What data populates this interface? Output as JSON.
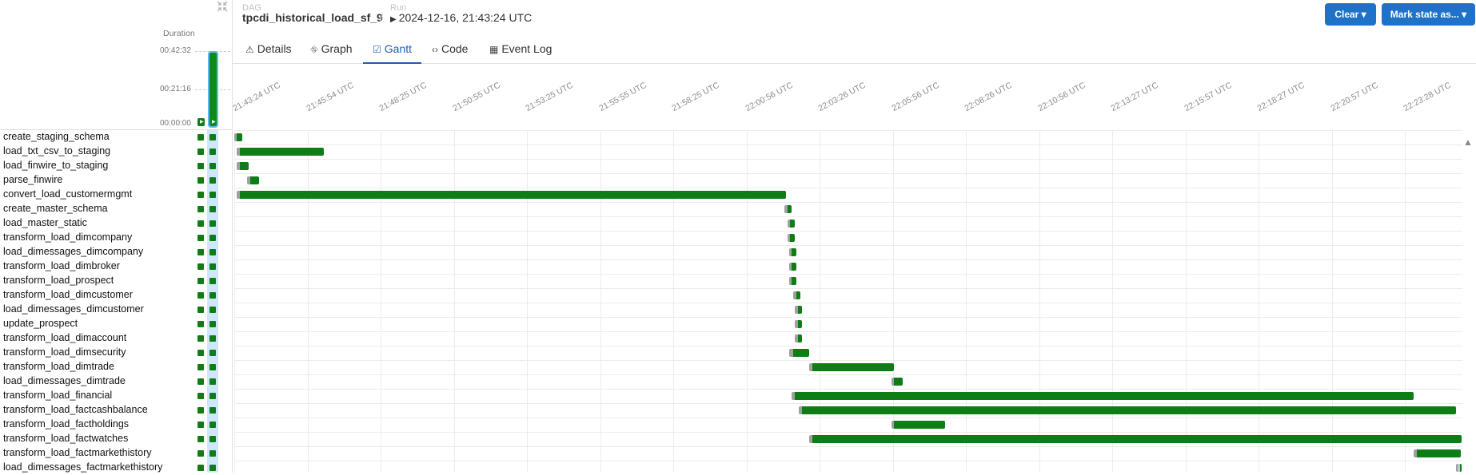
{
  "header": {
    "dag_caption": "DAG",
    "dag_id": "tpcdi_historical_load_sf_9",
    "separator": "/",
    "run_caption": "Run",
    "run_value": "2024-12-16, 21:43:24 UTC",
    "clear_label": "Clear ▾",
    "mark_state_label": "Mark state as... ▾"
  },
  "grid": {
    "duration_label": "Duration",
    "duration_ticks": [
      "00:42:32",
      "00:21:16",
      "00:00:00"
    ],
    "run_durations_fraction": [
      0.0,
      1.0
    ],
    "tasks": [
      "create_staging_schema",
      "load_txt_csv_to_staging",
      "load_finwire_to_staging",
      "parse_finwire",
      "convert_load_customermgmt",
      "create_master_schema",
      "load_master_static",
      "transform_load_dimcompany",
      "load_dimessages_dimcompany",
      "transform_load_dimbroker",
      "transform_load_prospect",
      "transform_load_dimcustomer",
      "load_dimessages_dimcustomer",
      "update_prospect",
      "transform_load_dimaccount",
      "transform_load_dimsecurity",
      "transform_load_dimtrade",
      "load_dimessages_dimtrade",
      "transform_load_financial",
      "transform_load_factcashbalance",
      "transform_load_factholdings",
      "transform_load_factwatches",
      "transform_load_factmarkethistory",
      "load_dimessages_factmarkethistory"
    ],
    "status_color": "#0f7d15"
  },
  "tabs": [
    {
      "label": "Details",
      "icon": "warning-icon"
    },
    {
      "label": "Graph",
      "icon": "graph-icon"
    },
    {
      "label": "Gantt",
      "icon": "gantt-icon",
      "active": true
    },
    {
      "label": "Code",
      "icon": "code-icon"
    },
    {
      "label": "Event Log",
      "icon": "calendar-icon"
    }
  ],
  "gantt": {
    "time_ticks": [
      "21:43:24 UTC",
      "21:45:54 UTC",
      "21:48:25 UTC",
      "21:50:55 UTC",
      "21:53:25 UTC",
      "21:55:55 UTC",
      "21:58:25 UTC",
      "22:00:56 UTC",
      "22:03:26 UTC",
      "22:05:56 UTC",
      "22:08:26 UTC",
      "22:10:56 UTC",
      "22:13:27 UTC",
      "22:15:57 UTC",
      "22:18:27 UTC",
      "22:20:57 UTC",
      "22:23:28 UTC"
    ],
    "tick_interval_minutes": 2.5,
    "colors": {
      "queued": "#a0a0a0",
      "running": "#0f7d15"
    },
    "bars_minutes": [
      {
        "queued": 0.0,
        "start": 0.08,
        "end": 0.28
      },
      {
        "queued": 0.08,
        "start": 0.2,
        "end": 3.05
      },
      {
        "queued": 0.08,
        "start": 0.2,
        "end": 0.5
      },
      {
        "queued": 0.45,
        "start": 0.55,
        "end": 0.85
      },
      {
        "queued": 0.08,
        "start": 0.2,
        "end": 18.85
      },
      {
        "queued": 18.8,
        "start": 18.9,
        "end": 19.05
      },
      {
        "queued": 18.9,
        "start": 19.0,
        "end": 19.15
      },
      {
        "queued": 18.9,
        "start": 19.0,
        "end": 19.15
      },
      {
        "queued": 18.95,
        "start": 19.05,
        "end": 19.2
      },
      {
        "queued": 18.95,
        "start": 19.05,
        "end": 19.2
      },
      {
        "queued": 18.95,
        "start": 19.05,
        "end": 19.2
      },
      {
        "queued": 19.1,
        "start": 19.2,
        "end": 19.35
      },
      {
        "queued": 19.15,
        "start": 19.25,
        "end": 19.4
      },
      {
        "queued": 19.15,
        "start": 19.25,
        "end": 19.4
      },
      {
        "queued": 19.15,
        "start": 19.25,
        "end": 19.4
      },
      {
        "queued": 18.95,
        "start": 19.1,
        "end": 19.65
      },
      {
        "queued": 19.65,
        "start": 19.75,
        "end": 22.55
      },
      {
        "queued": 22.45,
        "start": 22.55,
        "end": 22.85
      },
      {
        "queued": 19.05,
        "start": 19.15,
        "end": 40.3
      },
      {
        "queued": 19.3,
        "start": 19.4,
        "end": 41.75
      },
      {
        "queued": 22.45,
        "start": 22.55,
        "end": 24.3
      },
      {
        "queued": 19.65,
        "start": 19.75,
        "end": 41.95
      },
      {
        "queued": 40.3,
        "start": 40.4,
        "end": 41.9
      },
      {
        "queued": 41.75,
        "start": 41.8,
        "end": 41.95
      }
    ]
  }
}
